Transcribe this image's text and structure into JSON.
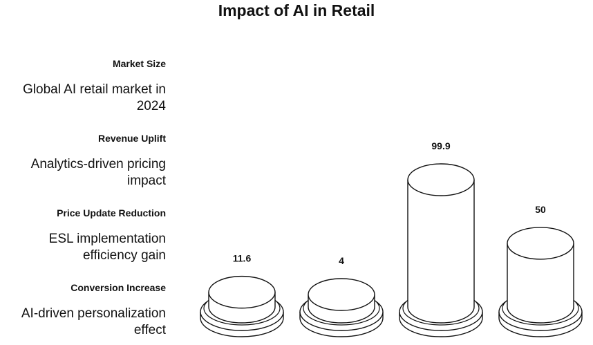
{
  "title": "Impact of AI in Retail",
  "chart_data": {
    "type": "bar",
    "title": "Impact of AI in Retail",
    "categories": [
      "Market Size",
      "Revenue Uplift",
      "Price Update Reduction",
      "Conversion Increase"
    ],
    "descriptions": [
      "Global AI retail market in 2024",
      "Analytics-driven pricing impact",
      "ESL implementation efficiency gain",
      "AI-driven personalization effect"
    ],
    "values": [
      11.6,
      4,
      99.9,
      50
    ],
    "value_labels": [
      "11.6",
      "4",
      "99.9",
      "50"
    ],
    "xlabel": "",
    "ylabel": "",
    "grid": false,
    "legend": "none",
    "style": "3d-cylinder",
    "colors": {
      "stroke": "#111111",
      "fill": "#ffffff"
    }
  }
}
